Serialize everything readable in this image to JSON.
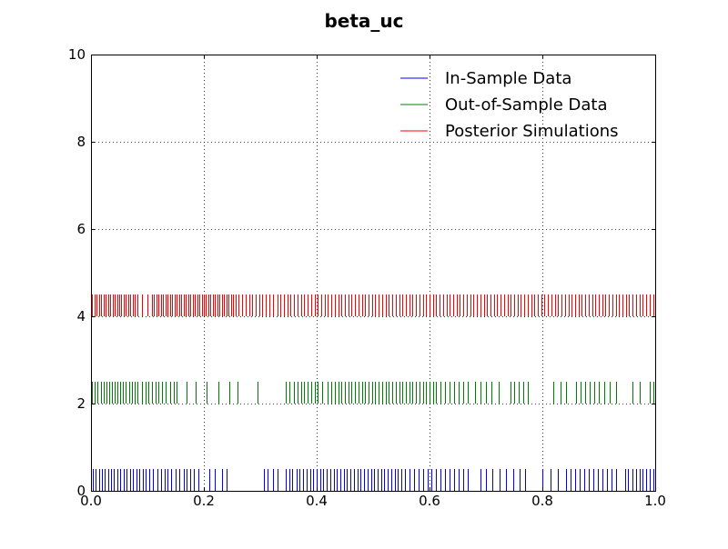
{
  "chart_data": {
    "type": "rug",
    "title": "beta_uc",
    "xlabel": "",
    "ylabel": "",
    "xlim": [
      0.0,
      1.0
    ],
    "ylim": [
      0,
      10
    ],
    "x_ticks": [
      "0.0",
      "0.2",
      "0.4",
      "0.6",
      "0.8",
      "1.0"
    ],
    "y_ticks": [
      "0",
      "2",
      "4",
      "6",
      "8",
      "10"
    ],
    "grid": true,
    "legend_position": "top-right",
    "series": [
      {
        "name": "In-Sample Data",
        "color": "#0000ff",
        "y_base": 0,
        "tick_height": 0.5,
        "values": [
          0.003,
          0.008,
          0.014,
          0.019,
          0.024,
          0.03,
          0.036,
          0.041,
          0.047,
          0.052,
          0.058,
          0.063,
          0.069,
          0.074,
          0.08,
          0.086,
          0.092,
          0.097,
          0.103,
          0.11,
          0.118,
          0.124,
          0.13,
          0.136,
          0.142,
          0.15,
          0.157,
          0.164,
          0.17,
          0.176,
          0.183,
          0.19,
          0.21,
          0.22,
          0.232,
          0.24,
          0.306,
          0.313,
          0.322,
          0.33,
          0.345,
          0.351,
          0.357,
          0.364,
          0.37,
          0.376,
          0.382,
          0.388,
          0.394,
          0.4,
          0.406,
          0.412,
          0.418,
          0.424,
          0.43,
          0.436,
          0.442,
          0.448,
          0.454,
          0.46,
          0.466,
          0.472,
          0.478,
          0.484,
          0.49,
          0.496,
          0.502,
          0.508,
          0.514,
          0.52,
          0.526,
          0.532,
          0.538,
          0.544,
          0.55,
          0.556,
          0.564,
          0.572,
          0.58,
          0.588,
          0.596,
          0.604,
          0.612,
          0.62,
          0.628,
          0.636,
          0.644,
          0.652,
          0.66,
          0.668,
          0.69,
          0.7,
          0.712,
          0.724,
          0.736,
          0.748,
          0.76,
          0.77,
          0.8,
          0.814,
          0.828,
          0.842,
          0.85,
          0.858,
          0.866,
          0.874,
          0.882,
          0.89,
          0.898,
          0.906,
          0.914,
          0.922,
          0.93,
          0.946,
          0.952,
          0.96,
          0.966,
          0.972,
          0.978,
          0.984,
          0.99,
          0.996
        ]
      },
      {
        "name": "Out-of-Sample Data",
        "color": "#008000",
        "y_base": 2,
        "tick_height": 0.5,
        "values": [
          0.002,
          0.007,
          0.012,
          0.017,
          0.022,
          0.027,
          0.032,
          0.037,
          0.042,
          0.047,
          0.052,
          0.057,
          0.062,
          0.067,
          0.072,
          0.077,
          0.082,
          0.09,
          0.096,
          0.102,
          0.108,
          0.114,
          0.12,
          0.126,
          0.132,
          0.14,
          0.146,
          0.152,
          0.17,
          0.185,
          0.205,
          0.225,
          0.245,
          0.26,
          0.295,
          0.345,
          0.352,
          0.36,
          0.366,
          0.372,
          0.378,
          0.384,
          0.39,
          0.396,
          0.402,
          0.41,
          0.42,
          0.426,
          0.432,
          0.438,
          0.444,
          0.45,
          0.456,
          0.462,
          0.468,
          0.474,
          0.48,
          0.486,
          0.492,
          0.498,
          0.504,
          0.51,
          0.516,
          0.522,
          0.528,
          0.534,
          0.54,
          0.546,
          0.552,
          0.558,
          0.564,
          0.57,
          0.576,
          0.582,
          0.588,
          0.594,
          0.6,
          0.606,
          0.612,
          0.62,
          0.628,
          0.636,
          0.644,
          0.652,
          0.66,
          0.668,
          0.68,
          0.69,
          0.7,
          0.71,
          0.722,
          0.744,
          0.75,
          0.758,
          0.766,
          0.774,
          0.82,
          0.832,
          0.842,
          0.86,
          0.868,
          0.876,
          0.884,
          0.892,
          0.9,
          0.91,
          0.92,
          0.93,
          0.96,
          0.972,
          0.99,
          0.996
        ]
      },
      {
        "name": "Posterior Simulations",
        "color": "#ff0000",
        "y_base": 4,
        "tick_height": 0.5,
        "values": [
          0.002,
          0.006,
          0.01,
          0.014,
          0.018,
          0.022,
          0.026,
          0.03,
          0.034,
          0.038,
          0.042,
          0.046,
          0.05,
          0.054,
          0.058,
          0.062,
          0.066,
          0.07,
          0.074,
          0.078,
          0.082,
          0.09,
          0.1,
          0.108,
          0.112,
          0.116,
          0.12,
          0.124,
          0.128,
          0.132,
          0.136,
          0.14,
          0.144,
          0.148,
          0.152,
          0.156,
          0.16,
          0.164,
          0.168,
          0.172,
          0.176,
          0.18,
          0.184,
          0.188,
          0.192,
          0.196,
          0.2,
          0.204,
          0.208,
          0.212,
          0.216,
          0.22,
          0.224,
          0.228,
          0.232,
          0.236,
          0.24,
          0.244,
          0.248,
          0.252,
          0.256,
          0.262,
          0.268,
          0.274,
          0.28,
          0.286,
          0.292,
          0.298,
          0.304,
          0.31,
          0.316,
          0.322,
          0.33,
          0.336,
          0.342,
          0.348,
          0.354,
          0.36,
          0.366,
          0.372,
          0.378,
          0.384,
          0.39,
          0.396,
          0.402,
          0.408,
          0.414,
          0.42,
          0.426,
          0.432,
          0.438,
          0.444,
          0.45,
          0.456,
          0.462,
          0.468,
          0.474,
          0.48,
          0.486,
          0.492,
          0.498,
          0.504,
          0.51,
          0.516,
          0.522,
          0.528,
          0.534,
          0.54,
          0.546,
          0.552,
          0.558,
          0.564,
          0.57,
          0.576,
          0.582,
          0.588,
          0.594,
          0.6,
          0.606,
          0.612,
          0.618,
          0.624,
          0.63,
          0.636,
          0.642,
          0.648,
          0.654,
          0.66,
          0.666,
          0.672,
          0.678,
          0.684,
          0.69,
          0.696,
          0.702,
          0.708,
          0.714,
          0.72,
          0.726,
          0.732,
          0.738,
          0.744,
          0.75,
          0.756,
          0.762,
          0.768,
          0.774,
          0.78,
          0.786,
          0.792,
          0.798,
          0.804,
          0.81,
          0.816,
          0.822,
          0.828,
          0.834,
          0.84,
          0.846,
          0.852,
          0.858,
          0.864,
          0.87,
          0.876,
          0.882,
          0.888,
          0.894,
          0.9,
          0.906,
          0.912,
          0.918,
          0.924,
          0.93,
          0.936,
          0.942,
          0.948,
          0.954,
          0.96,
          0.966,
          0.972,
          0.978,
          0.984,
          0.99,
          0.996
        ]
      }
    ]
  }
}
